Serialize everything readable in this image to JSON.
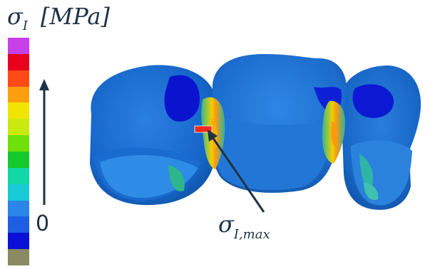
{
  "legend": {
    "symbol": "σ",
    "symbol_subscript": "I",
    "unit": "[MPa]",
    "zero_label": "0",
    "colors": [
      "#c83ee8",
      "#e8001c",
      "#ff4a16",
      "#ff9f10",
      "#f1e500",
      "#c8ea10",
      "#6fe00a",
      "#14c92a",
      "#12d7a6",
      "#19cbd6",
      "#2a86e8",
      "#1f5ee4",
      "#0a10d8",
      "#8b8b63"
    ],
    "arrow_direction": "increasing-upward"
  },
  "annotation": {
    "symbol": "σ",
    "symbol_subscript": "I,max"
  }
}
